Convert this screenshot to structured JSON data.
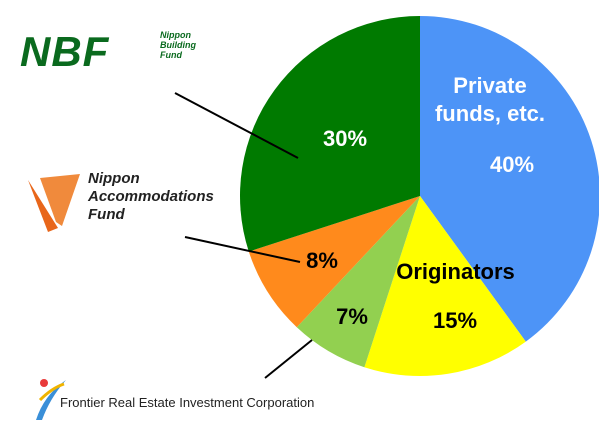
{
  "chart_data": {
    "type": "pie",
    "categories": [
      "Private funds, etc.",
      "Originators",
      null,
      null,
      null
    ],
    "values": [
      40,
      15,
      7,
      8,
      30
    ],
    "value_labels": [
      "40%",
      "15%",
      "7%",
      "8%",
      "30%"
    ],
    "colors": [
      "#4d94f7",
      "#ffff00",
      "#92d050",
      "#ff8a1c",
      "#007a00"
    ],
    "logos": {
      "nbf_mark": "NBF",
      "nbf_name": "Nippon Building Fund",
      "naf_name": "Nippon Accommodations Fund",
      "frontier_name": "Frontier Real Estate Investment Corporation"
    }
  }
}
